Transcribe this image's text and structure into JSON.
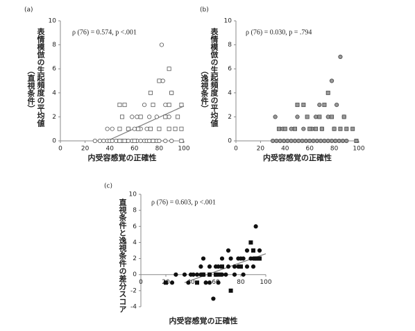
{
  "chart_data": [
    {
      "type": "scatter",
      "panel_label": "(a)",
      "annotation": "ρ (76) = 0.574, p <.001",
      "y_label": [
        "表情模倣の生起頻度の平均値",
        "（直視条件）"
      ],
      "x_label": "内受容感覚の正確性",
      "xlim": [
        0,
        100
      ],
      "xticks": [
        0,
        20,
        40,
        60,
        80,
        100
      ],
      "ylim": [
        0,
        10
      ],
      "yticks": [
        0,
        2,
        4,
        6,
        8,
        10
      ],
      "series": [
        {
          "marker": "circle",
          "color": "#555555",
          "fill": "#ffffff",
          "x": [
            28,
            32,
            35,
            38,
            40,
            42,
            45,
            48,
            50,
            53,
            55,
            58,
            60,
            62,
            65,
            68,
            70,
            72,
            75,
            78,
            80,
            85,
            90,
            38,
            42,
            55,
            60,
            65,
            70,
            58,
            62,
            72,
            78,
            88,
            68,
            85,
            90,
            80,
            83,
            82
          ],
          "values": [
            0,
            0,
            0,
            0,
            0,
            0,
            0,
            0,
            0,
            0,
            0,
            0,
            0,
            0,
            0,
            0,
            0,
            0,
            0,
            0,
            0,
            0,
            0,
            1,
            1,
            1,
            1,
            1,
            1,
            2,
            2,
            2,
            2,
            2,
            3,
            3,
            4,
            5,
            5,
            8
          ]
        },
        {
          "marker": "square",
          "color": "#555555",
          "fill": "#ffffff",
          "x": [
            48,
            52,
            60,
            75,
            98,
            48,
            55,
            63,
            73,
            80,
            88,
            93,
            98,
            50,
            65,
            85,
            95,
            48,
            52,
            75,
            88,
            98,
            73,
            90,
            80,
            88
          ],
          "values": [
            0,
            0,
            0,
            0,
            0,
            1,
            1,
            1,
            1,
            1,
            1,
            1,
            1,
            2,
            2,
            2,
            2,
            3,
            3,
            3,
            3,
            3,
            4,
            4,
            5,
            6
          ]
        }
      ],
      "trendline": {
        "color": "#777777",
        "x": [
          38,
          100
        ],
        "values": [
          0,
          2.9
        ]
      }
    },
    {
      "type": "scatter",
      "panel_label": "(b)",
      "annotation": "ρ (76) = 0.030, p = .794",
      "y_label": [
        "表情模倣の生起頻度の平均値",
        "（逸視条件）"
      ],
      "x_label": "内受容感覚の正確性",
      "xlim": [
        0,
        100
      ],
      "xticks": [
        0,
        20,
        40,
        60,
        80,
        100
      ],
      "ylim": [
        0,
        10
      ],
      "yticks": [
        0,
        2,
        4,
        6,
        8,
        10
      ],
      "series": [
        {
          "marker": "circle",
          "color": "#444444",
          "fill": "#999999",
          "x": [
            30,
            33,
            36,
            39,
            42,
            45,
            48,
            51,
            54,
            57,
            60,
            63,
            66,
            69,
            72,
            75,
            78,
            81,
            84,
            87,
            90,
            32,
            38,
            45,
            50,
            55,
            62,
            65,
            68,
            70,
            75,
            78,
            80,
            82,
            85,
            88
          ],
          "values": [
            0,
            0,
            0,
            0,
            0,
            0,
            0,
            0,
            0,
            0,
            0,
            0,
            0,
            0,
            0,
            0,
            0,
            0,
            0,
            0,
            0,
            2,
            1,
            1,
            2,
            1,
            1,
            2,
            3,
            1,
            2,
            5,
            1,
            3,
            7,
            2
          ]
        },
        {
          "marker": "square",
          "color": "#444444",
          "fill": "#999999",
          "x": [
            35,
            40,
            48,
            50,
            55,
            58,
            60,
            65,
            68,
            70,
            72,
            75,
            78,
            80,
            85,
            88,
            90,
            95,
            98
          ],
          "values": [
            1,
            1,
            1,
            3,
            3,
            2,
            1,
            1,
            2,
            1,
            3,
            4,
            2,
            1,
            1,
            2,
            1,
            1,
            0
          ]
        }
      ]
    },
    {
      "type": "scatter",
      "panel_label": "(c)",
      "annotation": "ρ (76) = 0.603, p <.001",
      "y_label": [
        "直視条件と逸視条件の差分スコア"
      ],
      "x_label": "内受容感覚の正確性",
      "xlim": [
        0,
        100
      ],
      "xticks": [
        0,
        20,
        40,
        60,
        80,
        100
      ],
      "ylim": [
        -4,
        10
      ],
      "yticks": [
        -4,
        -2,
        0,
        2,
        4,
        6,
        8,
        10
      ],
      "series": [
        {
          "marker": "circle",
          "color": "#111111",
          "fill": "#111111",
          "x": [
            25,
            28,
            35,
            38,
            40,
            42,
            45,
            48,
            50,
            50,
            52,
            55,
            55,
            58,
            60,
            60,
            62,
            62,
            65,
            65,
            68,
            70,
            70,
            72,
            75,
            75,
            78,
            78,
            80,
            82,
            82,
            85,
            85,
            88,
            90,
            90,
            92,
            92,
            95,
            95,
            55,
            48
          ],
          "values": [
            -1,
            0,
            0,
            -1,
            0,
            0,
            0,
            1,
            0,
            2,
            -1,
            0,
            1,
            -3,
            0,
            1,
            1,
            -1,
            0,
            2,
            0,
            1,
            3,
            2,
            0,
            1,
            1,
            2,
            2,
            2,
            0,
            1,
            3,
            2,
            2,
            1,
            2,
            6,
            2,
            3,
            -1,
            0
          ]
        },
        {
          "marker": "square",
          "color": "#111111",
          "fill": "#111111",
          "x": [
            20,
            45,
            50,
            55,
            60,
            65,
            72,
            80,
            88,
            90,
            92,
            95,
            63
          ],
          "values": [
            -1,
            -1,
            0,
            0,
            0,
            1,
            -2,
            1,
            4,
            3,
            2,
            2,
            0
          ]
        }
      ],
      "trendline": {
        "color": "#777777",
        "x": [
          35,
          100
        ],
        "values": [
          -1,
          2.6
        ]
      }
    }
  ]
}
